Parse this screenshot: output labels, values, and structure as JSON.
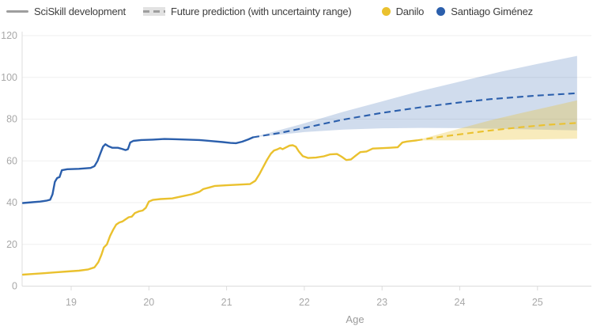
{
  "legend": {
    "sciskill": "SciSkill development",
    "prediction": "Future prediction (with uncertainty range)"
  },
  "colors": {
    "danilo": "#eac12e",
    "santiago": "#2b5fac",
    "danilo_band": "#eac12e",
    "santiago_band": "#2b5fac",
    "grid": "#efefef",
    "axis": "#dcdcdc",
    "tick_text": "#a8a8a8",
    "axis_label_text": "#9b9b9b",
    "legend_gray": "#9e9e9e"
  },
  "chart_data": {
    "type": "line",
    "xlabel": "Age",
    "ylabel": "",
    "xlim": [
      18.37,
      25.72
    ],
    "ylim": [
      0,
      120
    ],
    "x_ticks": [
      19,
      20,
      21,
      22,
      23,
      24,
      25
    ],
    "y_ticks": [
      0,
      20,
      40,
      60,
      80,
      100,
      120
    ],
    "grid": "horizontal only",
    "legend_position": "top",
    "series": [
      {
        "name": "Santiago Giménez",
        "color": "#2b5fac",
        "actual": [
          [
            18.38,
            39.8
          ],
          [
            18.5,
            40.2
          ],
          [
            18.6,
            40.5
          ],
          [
            18.68,
            40.9
          ],
          [
            18.73,
            41.4
          ],
          [
            18.76,
            44
          ],
          [
            18.79,
            50
          ],
          [
            18.82,
            51.8
          ],
          [
            18.85,
            52.2
          ],
          [
            18.88,
            55.5
          ],
          [
            18.95,
            56
          ],
          [
            19.1,
            56.2
          ],
          [
            19.25,
            56.6
          ],
          [
            19.3,
            57.5
          ],
          [
            19.34,
            60
          ],
          [
            19.38,
            64
          ],
          [
            19.41,
            66.8
          ],
          [
            19.44,
            68
          ],
          [
            19.48,
            67
          ],
          [
            19.53,
            66.3
          ],
          [
            19.6,
            66.3
          ],
          [
            19.65,
            65.8
          ],
          [
            19.7,
            65.2
          ],
          [
            19.73,
            65.6
          ],
          [
            19.76,
            68.8
          ],
          [
            19.8,
            69.6
          ],
          [
            19.9,
            70
          ],
          [
            20.05,
            70.2
          ],
          [
            20.2,
            70.5
          ],
          [
            20.35,
            70.4
          ],
          [
            20.5,
            70.2
          ],
          [
            20.65,
            70
          ],
          [
            20.8,
            69.5
          ],
          [
            20.95,
            69
          ],
          [
            21.05,
            68.6
          ],
          [
            21.12,
            68.5
          ],
          [
            21.2,
            69.2
          ],
          [
            21.28,
            70.3
          ],
          [
            21.34,
            71.3
          ]
        ],
        "prediction": [
          [
            21.34,
            71.3
          ],
          [
            21.7,
            73.5
          ],
          [
            22.0,
            75.8
          ],
          [
            22.5,
            79.8
          ],
          [
            23.0,
            83
          ],
          [
            23.5,
            85.7
          ],
          [
            24.0,
            88
          ],
          [
            24.4,
            89.6
          ],
          [
            25.0,
            91.3
          ],
          [
            25.51,
            92.4
          ]
        ],
        "band_upper": [
          [
            21.34,
            71.3
          ],
          [
            22.0,
            78
          ],
          [
            22.5,
            83.5
          ],
          [
            23.0,
            88.5
          ],
          [
            23.5,
            93.5
          ],
          [
            24.0,
            98
          ],
          [
            24.5,
            102.5
          ],
          [
            25.0,
            106.5
          ],
          [
            25.51,
            110.3
          ]
        ],
        "band_lower": [
          [
            21.34,
            71.3
          ],
          [
            22.0,
            73.8
          ],
          [
            22.5,
            75
          ],
          [
            23.0,
            75.6
          ],
          [
            23.5,
            75.8
          ],
          [
            24.0,
            75.7
          ],
          [
            24.5,
            75.4
          ],
          [
            25.0,
            75
          ],
          [
            25.51,
            74.6
          ]
        ]
      },
      {
        "name": "Danilo",
        "color": "#eac12e",
        "actual": [
          [
            18.38,
            5.5
          ],
          [
            18.5,
            5.8
          ],
          [
            18.65,
            6.2
          ],
          [
            18.8,
            6.6
          ],
          [
            18.95,
            7.0
          ],
          [
            19.1,
            7.4
          ],
          [
            19.22,
            8.0
          ],
          [
            19.3,
            9.0
          ],
          [
            19.35,
            11.5
          ],
          [
            19.39,
            15
          ],
          [
            19.42,
            18.5
          ],
          [
            19.46,
            20
          ],
          [
            19.5,
            24
          ],
          [
            19.54,
            27
          ],
          [
            19.58,
            29.5
          ],
          [
            19.62,
            30.5
          ],
          [
            19.66,
            31
          ],
          [
            19.7,
            32
          ],
          [
            19.74,
            33
          ],
          [
            19.78,
            33.3
          ],
          [
            19.82,
            35
          ],
          [
            19.87,
            35.8
          ],
          [
            19.92,
            36.2
          ],
          [
            19.96,
            37.5
          ],
          [
            20.0,
            40.5
          ],
          [
            20.05,
            41.3
          ],
          [
            20.15,
            41.7
          ],
          [
            20.3,
            42
          ],
          [
            20.45,
            43.2
          ],
          [
            20.55,
            44
          ],
          [
            20.65,
            45.2
          ],
          [
            20.7,
            46.5
          ],
          [
            20.78,
            47.3
          ],
          [
            20.85,
            48
          ],
          [
            21.0,
            48.3
          ],
          [
            21.15,
            48.6
          ],
          [
            21.3,
            48.9
          ],
          [
            21.37,
            50.5
          ],
          [
            21.42,
            53.5
          ],
          [
            21.47,
            57
          ],
          [
            21.52,
            60.5
          ],
          [
            21.57,
            63.5
          ],
          [
            21.61,
            65
          ],
          [
            21.65,
            65.5
          ],
          [
            21.69,
            66.2
          ],
          [
            21.72,
            65.6
          ],
          [
            21.76,
            66.4
          ],
          [
            21.81,
            67.3
          ],
          [
            21.85,
            67.5
          ],
          [
            21.89,
            66.8
          ],
          [
            21.93,
            64.5
          ],
          [
            21.98,
            62.3
          ],
          [
            22.05,
            61.4
          ],
          [
            22.15,
            61.6
          ],
          [
            22.25,
            62.2
          ],
          [
            22.33,
            63.1
          ],
          [
            22.42,
            63.3
          ],
          [
            22.48,
            62
          ],
          [
            22.54,
            60.4
          ],
          [
            22.6,
            60.7
          ],
          [
            22.66,
            62.5
          ],
          [
            22.72,
            64.2
          ],
          [
            22.8,
            64.5
          ],
          [
            22.88,
            65.9
          ],
          [
            23.0,
            66.1
          ],
          [
            23.1,
            66.3
          ],
          [
            23.2,
            66.5
          ],
          [
            23.26,
            68.8
          ],
          [
            23.32,
            69.3
          ],
          [
            23.44,
            69.8
          ]
        ],
        "prediction": [
          [
            23.44,
            69.8
          ],
          [
            23.8,
            71.8
          ],
          [
            24.1,
            73.2
          ],
          [
            24.4,
            74.6
          ],
          [
            24.8,
            76.2
          ],
          [
            25.1,
            77.2
          ],
          [
            25.51,
            78.2
          ]
        ],
        "band_upper": [
          [
            23.44,
            69.8
          ],
          [
            23.8,
            73.5
          ],
          [
            24.1,
            76.5
          ],
          [
            24.4,
            79.5
          ],
          [
            24.8,
            83
          ],
          [
            25.1,
            85.5
          ],
          [
            25.51,
            89
          ]
        ],
        "band_lower": [
          [
            23.44,
            69.8
          ],
          [
            23.8,
            69.8
          ],
          [
            24.1,
            69.9
          ],
          [
            24.4,
            70
          ],
          [
            24.8,
            70.2
          ],
          [
            25.1,
            70.4
          ],
          [
            25.51,
            70.6
          ]
        ]
      }
    ]
  }
}
